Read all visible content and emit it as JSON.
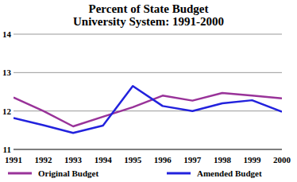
{
  "chart_data": {
    "type": "line",
    "title": "Percent of State Budget",
    "subtitle": "University System: 1991-2000",
    "categories": [
      "1991",
      "1992",
      "1993",
      "1994",
      "1995",
      "1996",
      "1997",
      "1998",
      "1999",
      "2000"
    ],
    "series": [
      {
        "name": "Original Budget",
        "color": "#993399",
        "values": [
          12.35,
          12.0,
          11.6,
          11.85,
          12.1,
          12.4,
          12.27,
          12.47,
          12.4,
          12.33
        ]
      },
      {
        "name": "Amended Budget",
        "color": "#2222dd",
        "values": [
          11.82,
          11.63,
          11.43,
          11.62,
          12.65,
          12.13,
          12.0,
          12.2,
          12.28,
          11.98
        ]
      }
    ],
    "ylim": [
      11,
      14
    ],
    "yticks": [
      11,
      12,
      13,
      14
    ],
    "grid": true,
    "legend": "bottom"
  }
}
